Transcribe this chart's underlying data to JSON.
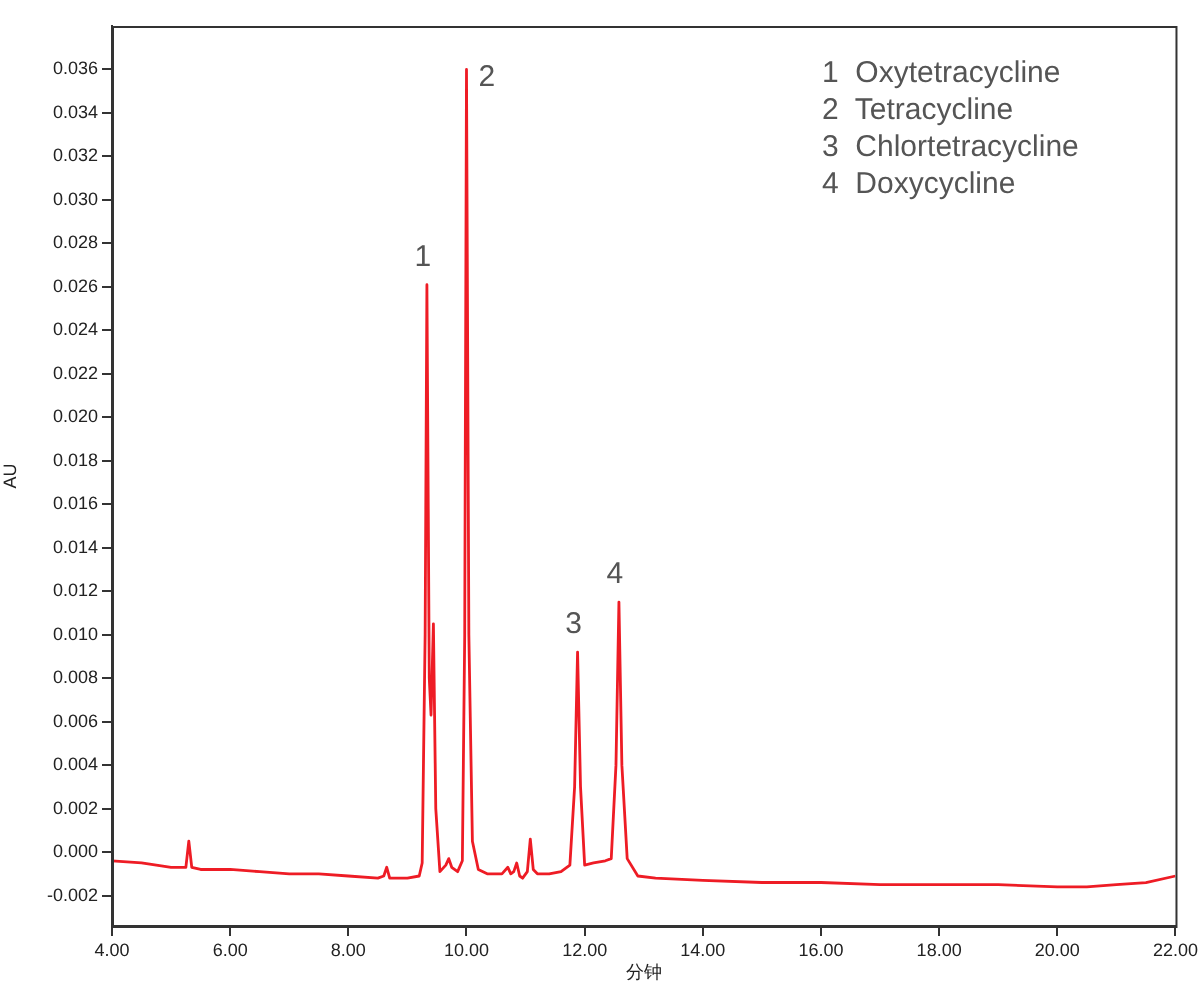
{
  "chart_data": {
    "type": "line",
    "xlabel": "分钟",
    "ylabel": "AU",
    "x": [
      4.0,
      4.5,
      5.0,
      5.25,
      5.3,
      5.35,
      5.5,
      6.0,
      6.5,
      7.0,
      7.5,
      8.0,
      8.5,
      8.6,
      8.65,
      8.7,
      9.0,
      9.2,
      9.25,
      9.3,
      9.33,
      9.37,
      9.4,
      9.44,
      9.48,
      9.55,
      9.65,
      9.7,
      9.75,
      9.85,
      9.93,
      9.97,
      10.0,
      10.04,
      10.1,
      10.2,
      10.35,
      10.6,
      10.7,
      10.75,
      10.8,
      10.85,
      10.9,
      10.95,
      11.03,
      11.08,
      11.13,
      11.2,
      11.4,
      11.6,
      11.75,
      11.83,
      11.88,
      11.93,
      12.0,
      12.15,
      12.35,
      12.45,
      12.53,
      12.58,
      12.63,
      12.72,
      12.9,
      13.2,
      14.0,
      15.0,
      16.0,
      17.0,
      18.0,
      19.0,
      20.0,
      20.5,
      21.0,
      21.5,
      22.0
    ],
    "series": [
      {
        "color": "#ee1c25",
        "values": [
          -0.0004,
          -0.0005,
          -0.0007,
          -0.0007,
          0.0005,
          -0.0007,
          -0.0008,
          -0.0008,
          -0.0009,
          -0.001,
          -0.001,
          -0.0011,
          -0.0012,
          -0.0011,
          -0.0007,
          -0.0012,
          -0.0012,
          -0.0011,
          -0.0005,
          0.01,
          0.0261,
          0.008,
          0.0063,
          0.0105,
          0.002,
          -0.0009,
          -0.0006,
          -0.0003,
          -0.0007,
          -0.0009,
          -0.0004,
          0.01,
          0.036,
          0.01,
          0.0005,
          -0.0008,
          -0.001,
          -0.001,
          -0.0007,
          -0.001,
          -0.0009,
          -0.0005,
          -0.0011,
          -0.0012,
          -0.0009,
          0.0006,
          -0.0008,
          -0.001,
          -0.001,
          -0.0009,
          -0.0006,
          0.003,
          0.0092,
          0.003,
          -0.0006,
          -0.0005,
          -0.0004,
          -0.0003,
          0.004,
          0.0115,
          0.004,
          -0.0003,
          -0.0011,
          -0.0012,
          -0.0013,
          -0.0014,
          -0.0014,
          -0.0015,
          -0.0015,
          -0.0015,
          -0.0016,
          -0.0016,
          -0.0015,
          -0.0014,
          -0.0011
        ]
      }
    ],
    "xlim": [
      4,
      22
    ],
    "xticks": [
      {
        "value": 4,
        "label": "4.00"
      },
      {
        "value": 6,
        "label": "6.00"
      },
      {
        "value": 8,
        "label": "8.00"
      },
      {
        "value": 10,
        "label": "10.00"
      },
      {
        "value": 12,
        "label": "12.00"
      },
      {
        "value": 14,
        "label": "14.00"
      },
      {
        "value": 16,
        "label": "16.00"
      },
      {
        "value": 18,
        "label": "18.00"
      },
      {
        "value": 20,
        "label": "20.00"
      },
      {
        "value": 22,
        "label": "22.00"
      }
    ],
    "ylim": [
      -0.0034,
      0.038
    ],
    "yticks": [
      {
        "value": -0.002,
        "label": "-0.002"
      },
      {
        "value": 0,
        "label": "0.000"
      },
      {
        "value": 0.002,
        "label": "0.002"
      },
      {
        "value": 0.004,
        "label": "0.004"
      },
      {
        "value": 0.006,
        "label": "0.006"
      },
      {
        "value": 0.008,
        "label": "0.008"
      },
      {
        "value": 0.01,
        "label": "0.010"
      },
      {
        "value": 0.012,
        "label": "0.012"
      },
      {
        "value": 0.014,
        "label": "0.014"
      },
      {
        "value": 0.016,
        "label": "0.016"
      },
      {
        "value": 0.018,
        "label": "0.018"
      },
      {
        "value": 0.02,
        "label": "0.020"
      },
      {
        "value": 0.022,
        "label": "0.022"
      },
      {
        "value": 0.024,
        "label": "0.024"
      },
      {
        "value": 0.026,
        "label": "0.026"
      },
      {
        "value": 0.028,
        "label": "0.028"
      },
      {
        "value": 0.03,
        "label": "0.030"
      },
      {
        "value": 0.032,
        "label": "0.032"
      },
      {
        "value": 0.034,
        "label": "0.034"
      },
      {
        "value": 0.036,
        "label": "0.036"
      }
    ],
    "annotations": [
      {
        "text": "1",
        "x": 9.33,
        "y": 0.0261
      },
      {
        "text": "2",
        "x": 10.0,
        "y": 0.036
      },
      {
        "text": "3",
        "x": 11.88,
        "y": 0.0092
      },
      {
        "text": "4",
        "x": 12.58,
        "y": 0.0115
      },
      "1  Oxytetracycline",
      "2  Tetracycline",
      "3  Chlortetracycline",
      "4  Doxycycline"
    ],
    "grid": false,
    "legend": false,
    "marker": "none",
    "line_style": "solid"
  }
}
